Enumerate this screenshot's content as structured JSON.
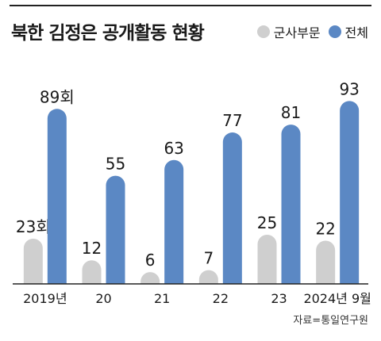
{
  "title": "북한 김정은 공개활동 현황",
  "source": "자료=통일연구원",
  "colors": {
    "military": "#cfcfcf",
    "total": "#5b88c4",
    "axis": "#222222"
  },
  "chart_data": {
    "type": "bar",
    "title": "북한 김정은 공개활동 현황",
    "categories": [
      "2019년",
      "20",
      "21",
      "22",
      "23",
      "2024년 9월"
    ],
    "series": [
      {
        "name": "군사부문",
        "values": [
          23,
          12,
          6,
          7,
          25,
          22
        ],
        "labels": [
          "23회",
          "12",
          "6",
          "7",
          "25",
          "22"
        ]
      },
      {
        "name": "전체",
        "values": [
          89,
          55,
          63,
          77,
          81,
          93
        ],
        "labels": [
          "89회",
          "55",
          "63",
          "77",
          "81",
          "93"
        ]
      }
    ],
    "ylim": [
      0,
      100
    ],
    "grid": false,
    "legend": "top-right"
  }
}
